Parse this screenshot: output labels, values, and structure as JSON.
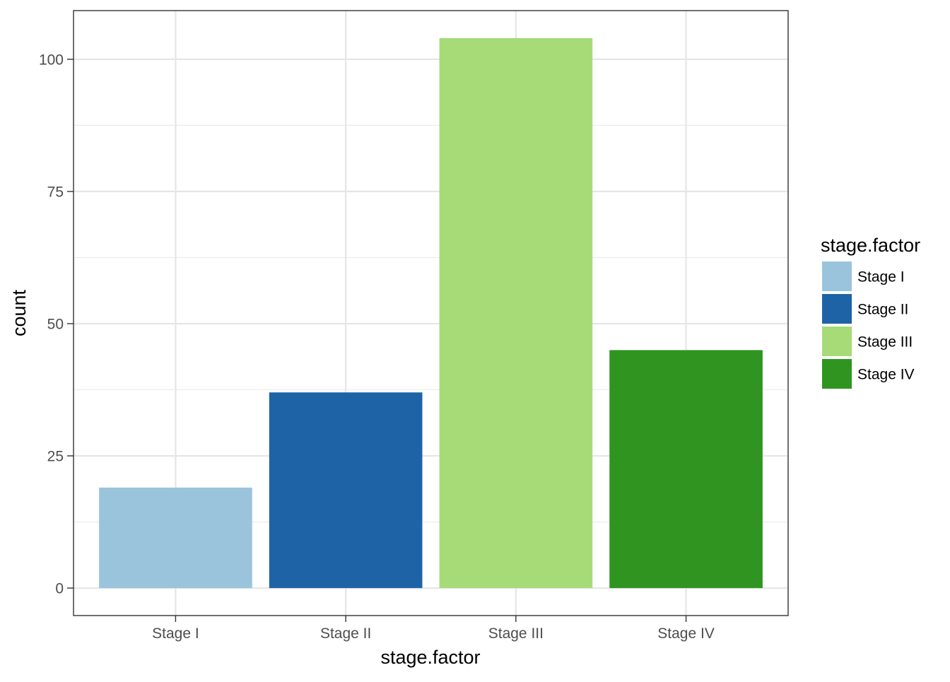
{
  "chart_data": {
    "type": "bar",
    "categories": [
      "Stage I",
      "Stage II",
      "Stage III",
      "Stage IV"
    ],
    "values": [
      19,
      37,
      104,
      45
    ],
    "colors": [
      "#9ac4dc",
      "#1f63a7",
      "#a6db78",
      "#2f9520"
    ],
    "xlabel": "stage.factor",
    "ylabel": "count",
    "ylim": [
      -5.2,
      109.2
    ],
    "yticks": [
      0,
      25,
      50,
      75,
      100
    ],
    "yticks_minor": [
      12.5,
      37.5,
      62.5,
      87.5
    ],
    "grid": true,
    "legend": {
      "title": "stage.factor",
      "position": "right",
      "entries": [
        "Stage I",
        "Stage II",
        "Stage III",
        "Stage IV"
      ]
    }
  }
}
